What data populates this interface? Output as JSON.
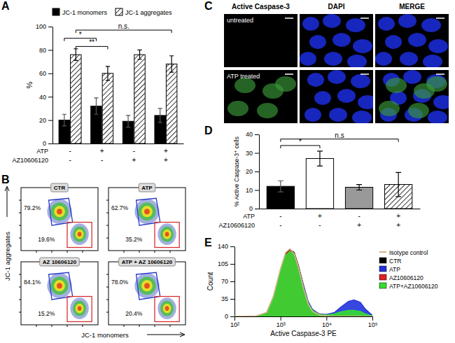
{
  "chart_data": [
    {
      "type": "bar",
      "panel": "A",
      "ylabel": "%",
      "categories": [
        null,
        null,
        null,
        null
      ],
      "series": [
        {
          "name": "JC-1 monomers",
          "color": "#000000",
          "values": [
            20,
            32,
            19,
            24
          ],
          "errors": [
            5,
            7,
            5,
            6
          ]
        },
        {
          "name": "JC-1 aggregates",
          "color": "#ffffff",
          "line_style": "hatched",
          "values": [
            76,
            60,
            76,
            68
          ],
          "errors": [
            5,
            6,
            4,
            7
          ]
        }
      ],
      "conditions": [
        {
          "label": "ATP",
          "values": [
            "-",
            "+",
            "-",
            "+"
          ]
        },
        {
          "label": "AZ10606120",
          "values": [
            "-",
            "-",
            "+",
            "+"
          ]
        }
      ],
      "annotations": [
        {
          "text": "*",
          "series": [
            0,
            0
          ],
          "categories": [
            0,
            1
          ],
          "y": 90
        },
        {
          "text": "**",
          "series": [
            1,
            1
          ],
          "categories": [
            0,
            1
          ],
          "y": 83
        },
        {
          "text": "n.s.",
          "series": [
            1,
            1
          ],
          "categories": [
            0,
            3
          ],
          "y": 97
        }
      ],
      "ylim": [
        0,
        100
      ],
      "yticks": [
        0,
        20,
        40,
        60,
        80,
        100
      ],
      "legend": "top"
    },
    {
      "type": "gates",
      "panel": "B",
      "xlabel": "JC-1 monomers",
      "ylabel": "JC-1 aggregates",
      "tick_labels": false,
      "colors": [
        "#2838c8",
        "#d83030"
      ],
      "panels": [
        {
          "title": "CTR",
          "values": [
            79.2,
            19.6
          ],
          "value_labels": [
            "79.2%",
            "19.6%"
          ]
        },
        {
          "title": "ATP",
          "values": [
            62.7,
            35.2
          ],
          "value_labels": [
            "62.7%",
            "35.2%"
          ]
        },
        {
          "title": "AZ 10606120",
          "values": [
            84.1,
            15.2
          ],
          "value_labels": [
            "84.1%",
            "15.2%"
          ]
        },
        {
          "title": "ATP + AZ 10606120",
          "values": [
            78.0,
            20.4
          ],
          "value_labels": [
            "78.0%",
            "20.4%"
          ]
        }
      ]
    },
    {
      "type": "image_grid",
      "panel": "C",
      "columns": [
        "Active Caspase-3",
        "DAPI",
        "MERGE"
      ],
      "rows": [
        "untreated",
        "ATP treated"
      ]
    },
    {
      "type": "bar",
      "panel": "D",
      "ylabel": "% Active Caspase-3⁺ cells",
      "categories": [
        null,
        null,
        null,
        null
      ],
      "values": [
        12,
        27,
        11.5,
        13
      ],
      "errors": [
        3,
        4,
        1.5,
        6.5
      ],
      "colors": [
        "#000000",
        "#ffffff",
        "#999999",
        "#ffffff"
      ],
      "line_style": [
        "solid",
        "solid",
        "solid",
        "hatched"
      ],
      "conditions": [
        {
          "label": "ATP",
          "values": [
            "-",
            "+",
            "-",
            "+"
          ]
        },
        {
          "label": "AZ10606120",
          "values": [
            "-",
            "-",
            "+",
            "+"
          ]
        }
      ],
      "annotations": [
        {
          "text": "*",
          "categories": [
            0,
            1
          ],
          "y": 34
        },
        {
          "text": "n.s",
          "categories": [
            0,
            3
          ],
          "y": 37.5
        }
      ],
      "ylim": [
        0,
        40
      ],
      "yticks": [
        0,
        10,
        20,
        30,
        40
      ]
    },
    {
      "type": "area",
      "panel": "E",
      "xlabel": "Active Caspase-3  PE",
      "ylabel": "Count",
      "log": "x",
      "x": [
        100,
        300,
        500,
        700,
        1000,
        1300,
        1600,
        2000,
        2500,
        3200,
        4000,
        5000,
        7000,
        10000,
        15000,
        20000,
        30000,
        40000,
        55000,
        70000,
        100000
      ],
      "xlim": [
        100,
        100000
      ],
      "xticks": [
        {
          "value": 100,
          "label": "10²"
        },
        {
          "value": 1000,
          "label": "10³"
        },
        {
          "value": 10000,
          "label": "10⁴"
        },
        {
          "value": 100000,
          "label": "10⁵"
        }
      ],
      "ylim": [
        0,
        140
      ],
      "yticks": [
        0,
        35,
        70,
        105,
        140
      ],
      "legend": "right",
      "series": [
        {
          "name": "Isotype control",
          "color": "#d2b48c",
          "type": "line",
          "values": [
            0,
            1,
            8,
            40,
            95,
            128,
            135,
            125,
            95,
            55,
            25,
            10,
            3,
            1,
            0,
            0,
            0,
            0,
            0,
            0,
            0
          ]
        },
        {
          "name": "CTR",
          "color": "#000000",
          "type": "area",
          "values": [
            0,
            1,
            7,
            38,
            92,
            125,
            134,
            128,
            100,
            60,
            28,
            12,
            4,
            2,
            2,
            3,
            3,
            3,
            2,
            1,
            0
          ]
        },
        {
          "name": "ATP",
          "color": "#2233dd",
          "type": "area",
          "values": [
            0,
            1,
            5,
            30,
            80,
            115,
            126,
            122,
            98,
            62,
            30,
            14,
            5,
            4,
            8,
            18,
            30,
            33,
            28,
            15,
            2
          ]
        },
        {
          "name": "AZ10606120",
          "color": "#dd2222",
          "type": "area",
          "values": [
            0,
            1,
            7,
            38,
            92,
            124,
            132,
            126,
            98,
            58,
            27,
            11,
            4,
            2,
            2,
            3,
            3,
            3,
            2,
            1,
            0
          ]
        },
        {
          "name": "ATP+AZ10606120",
          "color": "#33dd33",
          "type": "area",
          "values": [
            0,
            1,
            6,
            36,
            90,
            122,
            130,
            124,
            97,
            58,
            27,
            12,
            4,
            3,
            5,
            9,
            12,
            12,
            10,
            5,
            1
          ]
        }
      ]
    }
  ]
}
